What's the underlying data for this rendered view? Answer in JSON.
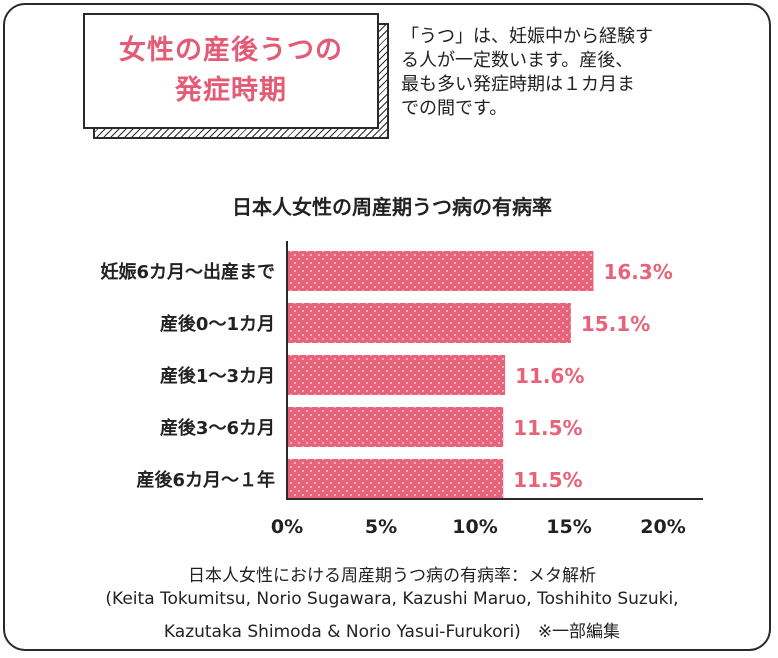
{
  "header": {
    "title_lines": [
      "女性の産後うつの",
      "発症時期"
    ],
    "intro_lines": [
      "「うつ」は、妊娠中から経験す",
      "る人が一定数います。産後、",
      "最も多い発症時期は１カ月ま",
      "での間です。"
    ]
  },
  "chart_data": {
    "type": "bar",
    "orientation": "horizontal",
    "title": "日本人女性の周産期うつ病の有病率",
    "categories": [
      "妊娠6カ月〜出産まで",
      "産後0〜1カ月",
      "産後1〜3カ月",
      "産後3〜6カ月",
      "産後6カ月〜１年"
    ],
    "values": [
      16.3,
      15.1,
      11.6,
      11.5,
      11.5
    ],
    "value_labels": [
      "16.3%",
      "15.1%",
      "11.6%",
      "11.5%",
      "11.5%"
    ],
    "xlim": [
      0,
      20
    ],
    "xticks": [
      "0%",
      "5%",
      "10%",
      "15%",
      "20%"
    ],
    "grid": false,
    "bar_color": "#e8637a"
  },
  "source": {
    "lines": [
      "日本人女性における周産期うつ病の有病率：メタ解析",
      "(Keita Tokumitsu, Norio Sugawara, Kazushi Maruo, Toshihito Suzuki,",
      "Kazutaka Shimoda & Norio Yasui-Furukori)　※一部編集"
    ]
  }
}
